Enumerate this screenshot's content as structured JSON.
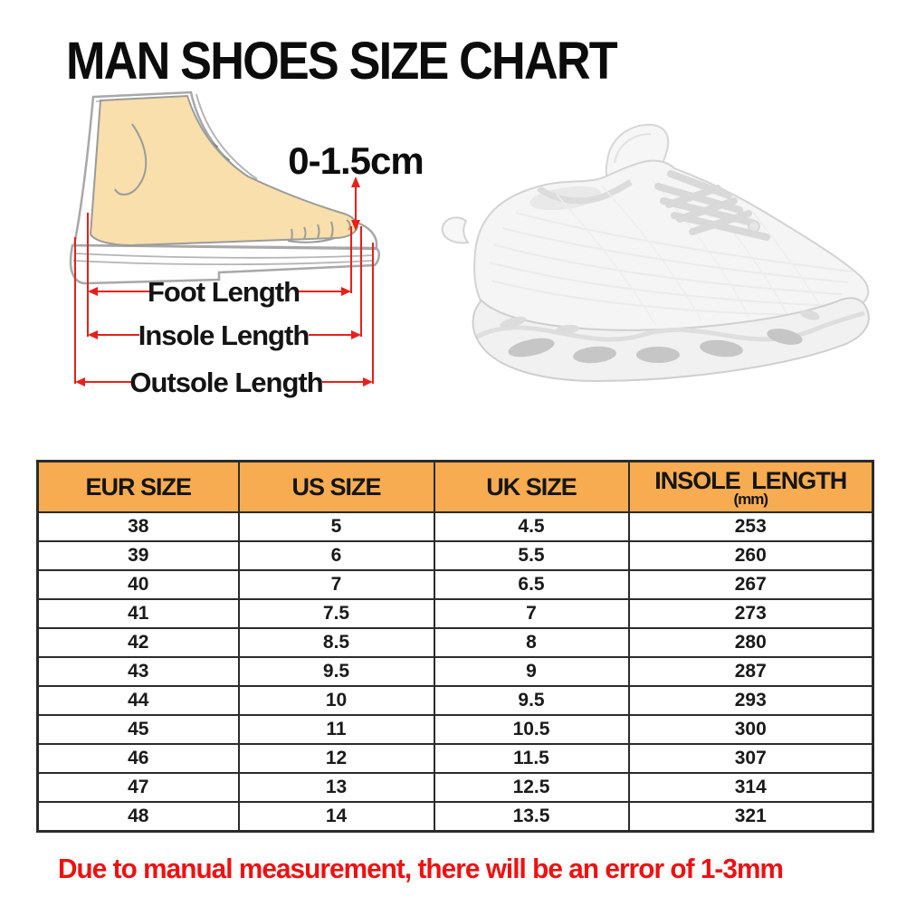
{
  "title": "MAN SHOES SIZE CHART",
  "diagram": {
    "toe_gap_label": "0-1.5cm",
    "labels": {
      "foot": "Foot Length",
      "insole": "Insole Length",
      "outsole": "Outsole Length"
    }
  },
  "table": {
    "columns": [
      {
        "key": "eur",
        "label": "EUR SIZE"
      },
      {
        "key": "us",
        "label": "US SIZE"
      },
      {
        "key": "uk",
        "label": "UK SIZE"
      },
      {
        "key": "insole_mm",
        "label": "INSOLE LENGTH",
        "unit": "(mm)"
      }
    ],
    "rows": [
      {
        "eur": "38",
        "us": "5",
        "uk": "4.5",
        "insole_mm": "253"
      },
      {
        "eur": "39",
        "us": "6",
        "uk": "5.5",
        "insole_mm": "260"
      },
      {
        "eur": "40",
        "us": "7",
        "uk": "6.5",
        "insole_mm": "267"
      },
      {
        "eur": "41",
        "us": "7.5",
        "uk": "7",
        "insole_mm": "273"
      },
      {
        "eur": "42",
        "us": "8.5",
        "uk": "8",
        "insole_mm": "280"
      },
      {
        "eur": "43",
        "us": "9.5",
        "uk": "9",
        "insole_mm": "287"
      },
      {
        "eur": "44",
        "us": "10",
        "uk": "9.5",
        "insole_mm": "293"
      },
      {
        "eur": "45",
        "us": "11",
        "uk": "10.5",
        "insole_mm": "300"
      },
      {
        "eur": "46",
        "us": "12",
        "uk": "11.5",
        "insole_mm": "307"
      },
      {
        "eur": "47",
        "us": "13",
        "uk": "12.5",
        "insole_mm": "314"
      },
      {
        "eur": "48",
        "us": "14",
        "uk": "13.5",
        "insole_mm": "321"
      }
    ]
  },
  "footnote": "Due to manual measurement, there will be an error of 1-3mm",
  "colors": {
    "header_bg": "#F7AC52",
    "accent_red": "#E6201B",
    "footnote_red": "#EE1111",
    "foot_skin": "#F8DFAC"
  }
}
